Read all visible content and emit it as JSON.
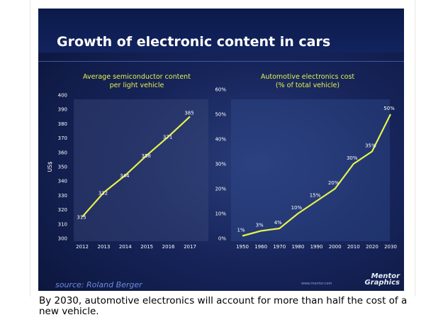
{
  "slide": {
    "title": "Growth of electronic content in cars",
    "source": "source: Roland Berger",
    "website": "www.mentor.com",
    "logo_lines": [
      "Mentor",
      "Graphics"
    ]
  },
  "caption": "By 2030, automotive electronics will account for more than half the cost of a new vehicle.",
  "colors": {
    "line": "#e6f24a",
    "label": "#e6f24a",
    "text": "#ffffff",
    "axis": "#c8cde0",
    "background": "#16245a"
  },
  "chart_data": [
    {
      "type": "line",
      "title": "Average semiconductor content per light vehicle",
      "title_lines": [
        "Average semiconductor content",
        "per light vehicle"
      ],
      "xlabel": "",
      "ylabel": "US$",
      "x": [
        "2012",
        "2013",
        "2014",
        "2015",
        "2016",
        "2017"
      ],
      "values": [
        315,
        332,
        344,
        358,
        371,
        385
      ],
      "data_labels": [
        "315",
        "332",
        "344",
        "358",
        "371",
        "385"
      ],
      "ylim": [
        300,
        400
      ],
      "y_ticks": [
        "300",
        "310",
        "320",
        "330",
        "340",
        "350",
        "360",
        "370",
        "380",
        "390",
        "400"
      ],
      "grid": false
    },
    {
      "type": "line",
      "title": "Automotive electronics cost (% of total vehicle)",
      "title_lines": [
        "Automotive electronics cost",
        "(% of total vehicle)"
      ],
      "xlabel": "",
      "ylabel": "",
      "x": [
        "1950",
        "1960",
        "1970",
        "1980",
        "1990",
        "2000",
        "2010",
        "2020",
        "2030"
      ],
      "values": [
        1,
        3,
        4,
        10,
        15,
        20,
        30,
        35,
        50
      ],
      "data_labels": [
        "1%",
        "3%",
        "4%",
        "10%",
        "15%",
        "20%",
        "30%",
        "35%",
        "50%"
      ],
      "ylim": [
        0,
        60
      ],
      "y_ticks": [
        "0%",
        "10%",
        "20%",
        "30%",
        "40%",
        "50%",
        "60%"
      ],
      "grid": false
    }
  ]
}
